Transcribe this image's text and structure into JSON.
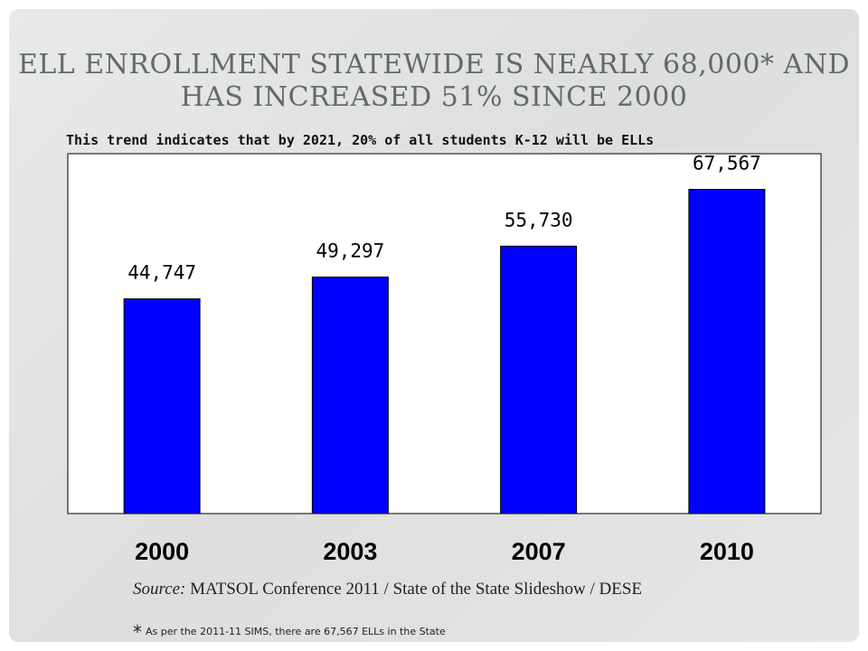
{
  "slide": {
    "title": "ELL Enrollment statewide is nearly 68,000* and has increased 51% since 2000",
    "subtitle": "This trend indicates that by 2021, 20% of all students K-12 will be ELLs",
    "source_label": "Source:",
    "source_text": "MATSOL Conference 2011 / State of the State Slideshow / DESE",
    "footnote_star": "*",
    "footnote_text": "As per the 2011-11 SIMS, there are 67,567 ELLs in the State"
  },
  "chart_data": {
    "type": "bar",
    "categories": [
      "2000",
      "2003",
      "2007",
      "2010"
    ],
    "values": [
      44747,
      49297,
      55730,
      67567
    ],
    "value_labels": [
      "44,747",
      "49,297",
      "55,730",
      "67,567"
    ],
    "bar_color": "#0000ff",
    "ylim": [
      0,
      75000
    ],
    "grid": false,
    "legend": "none"
  }
}
